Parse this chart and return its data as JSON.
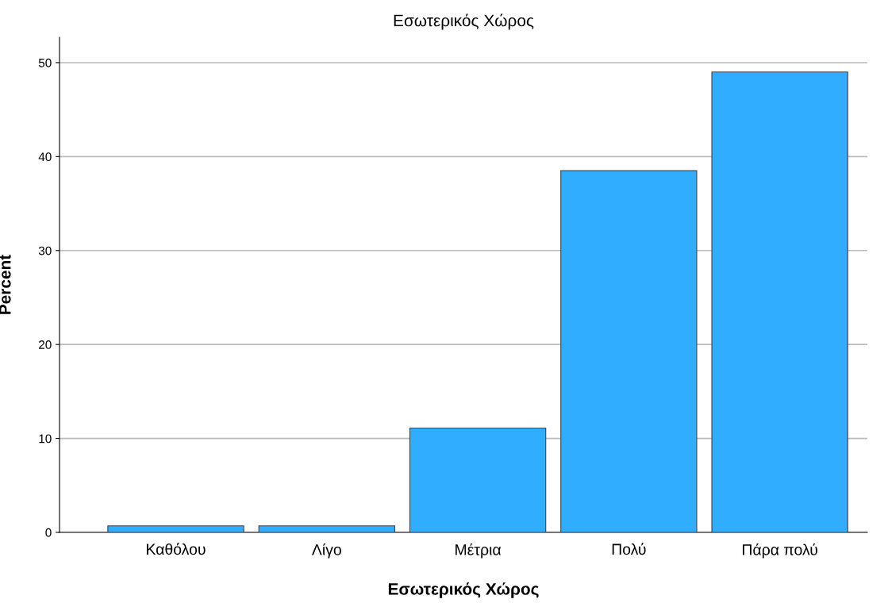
{
  "chart_data": {
    "type": "bar",
    "title": "Εσωτερικός Χώρος",
    "xlabel": "Εσωτερικός Χώρος",
    "ylabel": "Percent",
    "categories": [
      "Καθόλου",
      "Λίγο",
      "Μέτρια",
      "Πολύ",
      "Πάρα πολύ"
    ],
    "values": [
      0.7,
      0.7,
      11.1,
      38.5,
      49.0
    ],
    "color": "#31adff",
    "ylim": [
      0,
      52.7
    ],
    "yticks": [
      0,
      10,
      20,
      30,
      40,
      50
    ],
    "grid": "y"
  }
}
